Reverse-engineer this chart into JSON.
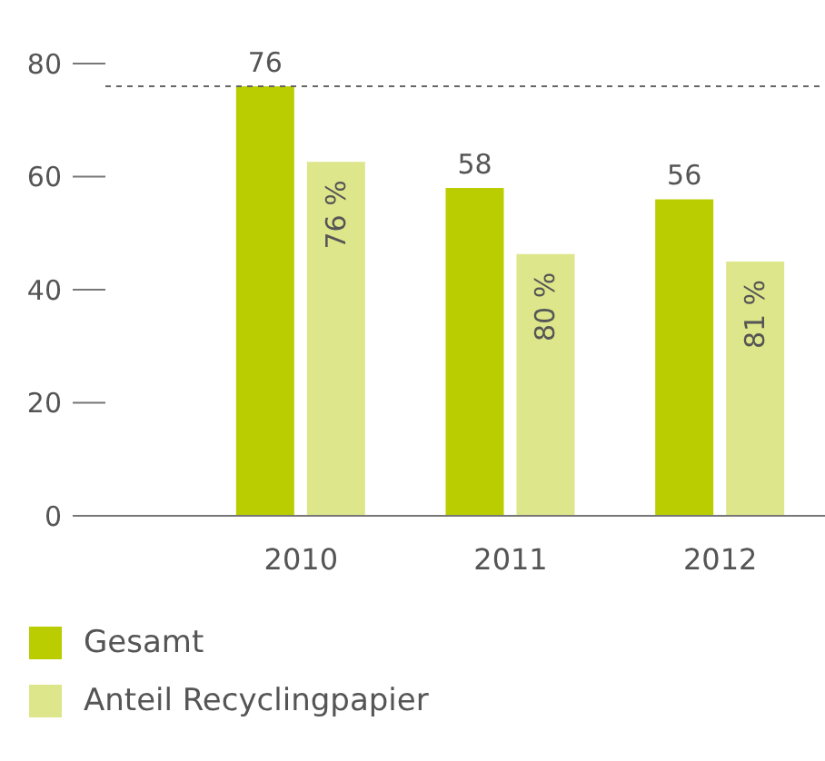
{
  "chart_data": {
    "type": "bar",
    "categories": [
      "2010",
      "2011",
      "2012"
    ],
    "series": [
      {
        "name": "Gesamt",
        "color": "#b9cd00",
        "values": [
          76,
          58,
          56
        ],
        "value_labels": [
          "76",
          "58",
          "56"
        ]
      },
      {
        "name": "Anteil Recyclingpapier",
        "color": "#dde68a",
        "values": [
          62.6,
          46.3,
          45.0
        ]
      }
    ],
    "annotations": [
      "76 %",
      "80 %",
      "81 %"
    ],
    "ylim": [
      0,
      80
    ],
    "yticks": [
      0,
      20,
      40,
      60,
      80
    ],
    "grid": false,
    "legend": "bottom",
    "ref_lines": [
      {
        "axis": "y",
        "value": 76,
        "color": "#666666",
        "line_style": "dashed"
      }
    ]
  }
}
